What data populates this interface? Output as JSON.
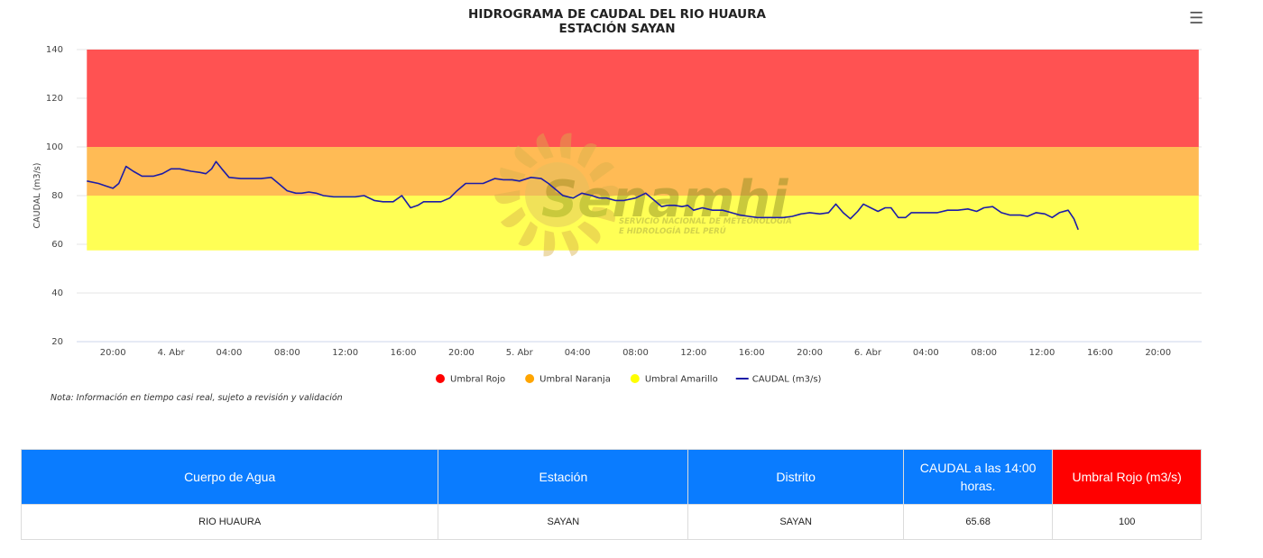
{
  "header": {
    "title_line1": "HIDROGRAMA DE CAUDAL DEL RIO HUAURA",
    "title_line2": "ESTACIÓN SAYAN",
    "menu_icon": "hamburger-menu-icon"
  },
  "watermark": {
    "brand": "Senamhi",
    "line1": "SERVICIO NACIONAL DE METEOROLOGÍA",
    "line2": "E HIDROLOGÍA DEL PERÚ"
  },
  "note": "Nota: Información en tiempo casi real, sujeto a revisión y validación",
  "chart_data": {
    "type": "line",
    "title": "HIDROGRAMA DE CAUDAL DEL RIO HUAURA",
    "subtitle": "ESTACIÓN SAYAN",
    "ylabel": "CAUDAL (m3/s)",
    "xlabel": "",
    "ylim": [
      20,
      140
    ],
    "yticks": [
      20,
      40,
      60,
      80,
      100,
      120,
      140
    ],
    "x_unit": "hours since 3 Abr 00:00",
    "xlim": [
      17.5,
      95
    ],
    "xticks": [
      {
        "x": 20,
        "label": "20:00"
      },
      {
        "x": 24,
        "label": "4. Abr"
      },
      {
        "x": 28,
        "label": "04:00"
      },
      {
        "x": 32,
        "label": "08:00"
      },
      {
        "x": 36,
        "label": "12:00"
      },
      {
        "x": 40,
        "label": "16:00"
      },
      {
        "x": 44,
        "label": "20:00"
      },
      {
        "x": 48,
        "label": "5. Abr"
      },
      {
        "x": 52,
        "label": "04:00"
      },
      {
        "x": 56,
        "label": "08:00"
      },
      {
        "x": 60,
        "label": "12:00"
      },
      {
        "x": 64,
        "label": "16:00"
      },
      {
        "x": 68,
        "label": "20:00"
      },
      {
        "x": 72,
        "label": "6. Abr"
      },
      {
        "x": 76,
        "label": "04:00"
      },
      {
        "x": 80,
        "label": "08:00"
      },
      {
        "x": 84,
        "label": "12:00"
      },
      {
        "x": 88,
        "label": "16:00"
      },
      {
        "x": 92,
        "label": "20:00"
      }
    ],
    "bands": [
      {
        "name": "Umbral Rojo",
        "from": 100,
        "to": 140,
        "color": "#ff5252"
      },
      {
        "name": "Umbral Naranja",
        "from": 80,
        "to": 100,
        "color": "#ffbb55"
      },
      {
        "name": "Umbral Amarillo",
        "from": 57.5,
        "to": 80,
        "color": "#ffff55"
      }
    ],
    "band_x_range": [
      18.2,
      94.8
    ],
    "grid": true,
    "legend_placement": "bottom-center",
    "legend": [
      {
        "name": "Umbral Rojo",
        "color": "#ff0000",
        "type": "dot"
      },
      {
        "name": "Umbral Naranja",
        "color": "#ffa500",
        "type": "dot"
      },
      {
        "name": "Umbral Amarillo",
        "color": "#ffff00",
        "type": "dot"
      },
      {
        "name": "CAUDAL (m3/s)",
        "color": "#1c1ca8",
        "type": "line"
      }
    ],
    "series": [
      {
        "name": "CAUDAL (m3/s)",
        "color": "#1c1ca8",
        "x": [
          18.2,
          19,
          19.5,
          20,
          20.4,
          20.9,
          21.4,
          22,
          22.8,
          23.4,
          24,
          24.6,
          25.4,
          26,
          26.4,
          26.8,
          27.1,
          27.5,
          28,
          28.8,
          29.5,
          30.2,
          30.9,
          31.4,
          32,
          32.6,
          33,
          33.5,
          34,
          34.5,
          35.2,
          36,
          36.7,
          37.3,
          38,
          38.6,
          39.3,
          39.9,
          40.5,
          41,
          41.4,
          42,
          42.6,
          43.2,
          43.7,
          44.3,
          44.8,
          45.5,
          46.3,
          46.9,
          47.5,
          48,
          48.8,
          49.5,
          50,
          50.5,
          51,
          51.7,
          52.3,
          53,
          53.5,
          54,
          54.6,
          55.2,
          56,
          56.7,
          57.3,
          57.8,
          58.2,
          58.7,
          59.2,
          59.6,
          60,
          60.6,
          61.3,
          62,
          62.6,
          63.2,
          63.8,
          64.4,
          65,
          65.6,
          66.2,
          66.8,
          67.4,
          68,
          68.7,
          69.3,
          69.8,
          70.3,
          70.8,
          71.3,
          71.7,
          72.2,
          72.7,
          73.2,
          73.6,
          74.1,
          74.6,
          75,
          75.5,
          76.1,
          76.8,
          77.5,
          78.2,
          78.9,
          79.5,
          80,
          80.6,
          81.2,
          81.8,
          82.5,
          83,
          83.6,
          84.2,
          84.7,
          85.2,
          85.8,
          86.2,
          86.5
        ],
        "y": [
          86,
          85,
          84,
          83,
          85,
          92,
          90,
          88,
          88,
          89,
          91,
          91,
          90,
          89.5,
          89,
          91,
          94,
          91,
          87.5,
          87,
          87,
          87,
          87.5,
          85,
          82,
          81,
          81,
          81.5,
          81,
          80,
          79.5,
          79.5,
          79.5,
          80,
          78,
          77.5,
          77.5,
          80,
          75,
          76,
          77.5,
          77.5,
          77.5,
          79,
          82,
          85,
          85,
          85,
          87,
          86.5,
          86.5,
          86,
          87.5,
          87,
          85,
          82.5,
          80,
          79,
          81,
          80,
          79,
          79,
          78,
          78,
          79,
          81,
          78,
          75.5,
          76,
          76,
          75.5,
          76,
          74,
          75,
          74,
          74,
          73,
          72,
          71.5,
          71,
          71,
          71,
          71,
          71.5,
          72.5,
          73,
          72.5,
          73,
          76.5,
          73,
          70.5,
          73.5,
          76.5,
          75,
          73.5,
          75,
          75,
          71,
          71,
          73,
          73,
          73,
          73,
          74,
          74,
          74.5,
          73.5,
          75,
          75.5,
          73,
          72,
          72,
          71.5,
          73,
          72.5,
          71,
          73,
          74,
          70.5,
          66
        ]
      }
    ]
  },
  "table": {
    "headers": [
      "Cuerpo de Agua",
      "Estación",
      "Distrito",
      "CAUDAL a las 14:00 horas.",
      "Umbral Rojo (m3/s)"
    ],
    "header_colors": [
      "#0a7cff",
      "#0a7cff",
      "#0a7cff",
      "#0a7cff",
      "#ff0000"
    ],
    "rows": [
      [
        "RIO HUAURA",
        "SAYAN",
        "SAYAN",
        "65.68",
        "100"
      ]
    ]
  }
}
